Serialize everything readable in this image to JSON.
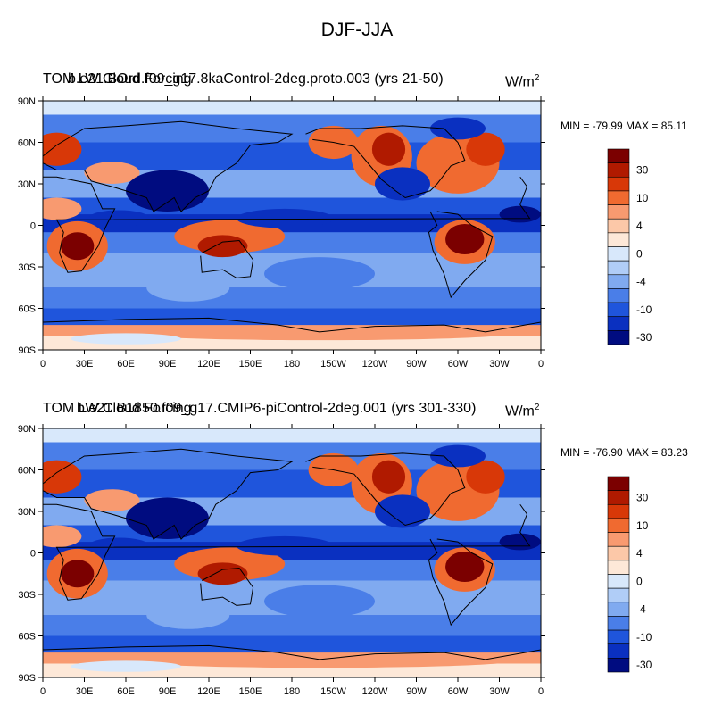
{
  "figure": {
    "title": "DJF-JJA"
  },
  "panels": [
    {
      "case_label": "b.e21.BOrd.f09_g17.8kaControl-2deg.proto.003 (yrs 21-50)",
      "variable_label": "TOM LW Cloud Forcing",
      "units_base": "W/m",
      "units_exp": "2",
      "minmax": "MIN = -79.99 MAX =  85.11",
      "min": -79.99,
      "max": 85.11
    },
    {
      "case_label": "b.e21.B1850.f09_g17.CMIP6-piControl-2deg.001 (yrs 301-330)",
      "variable_label": "TOM LW Cloud Forcing",
      "units_base": "W/m",
      "units_exp": "2",
      "minmax": "MIN = -76.90 MAX =  83.23",
      "min": -76.9,
      "max": 83.23
    }
  ],
  "axes": {
    "lon_ticks": [
      "0",
      "30E",
      "60E",
      "90E",
      "120E",
      "150E",
      "180",
      "150W",
      "120W",
      "90W",
      "60W",
      "30W",
      "0"
    ],
    "lat_ticks": [
      "90N",
      "60N",
      "30N",
      "0",
      "30S",
      "60S",
      "90S"
    ]
  },
  "colorbar": {
    "labels": [
      "30",
      "10",
      "4",
      "0",
      "-4",
      "-10",
      "-30"
    ],
    "colors": [
      "#7b0000",
      "#b01a00",
      "#d83808",
      "#f06a30",
      "#f89a70",
      "#fcc8a8",
      "#fde8d8",
      "#d8e8fb",
      "#b0cdf7",
      "#80aaf0",
      "#4a7ee8",
      "#1f55dc",
      "#0a30c0",
      "#000c80"
    ]
  },
  "map": {
    "ocean_neg": "#2050d8",
    "ocean_strong_neg": "#0a2a9c",
    "pos": "#e85a24",
    "strong_pos": "#8c0c00",
    "neutral": "#fde8d8",
    "coast": "#000000"
  }
}
